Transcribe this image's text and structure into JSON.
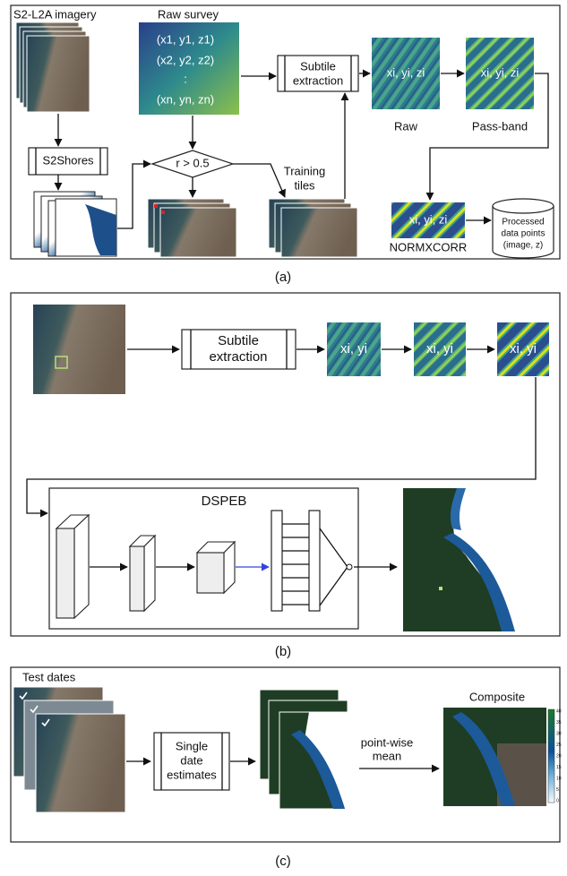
{
  "panel_a": {
    "label": "(a)",
    "imagery_title": "S2-L2A imagery",
    "survey_title": "Raw survey",
    "survey_points": [
      "(x1, y1, z1)",
      "(x2, y2, z2)",
      ":",
      "(xn, yn, zn)"
    ],
    "subtile": [
      "Subtile",
      "extraction"
    ],
    "tiles": [
      {
        "text": "xi, yi, zi",
        "label": "Raw"
      },
      {
        "text": "xi, yi, zi",
        "label": "Pass-band"
      },
      {
        "text": "xi, yi, zi",
        "label": "NORMXCORR"
      }
    ],
    "s2shores": "S2Shores",
    "condition": "r > 0.5",
    "training": [
      "Training",
      "tiles"
    ],
    "processed": [
      "Processed",
      "data points",
      "(image, z)"
    ]
  },
  "panel_b": {
    "label": "(b)",
    "subtile": [
      "Subtile",
      "extraction"
    ],
    "tiles": [
      "xi, yi",
      "xi, yi",
      "xi, yi"
    ],
    "model": "DSPEB"
  },
  "panel_c": {
    "label": "(c)",
    "test_dates": "Test dates",
    "single": [
      "Single",
      "date",
      "estimates"
    ],
    "mean": [
      "point-wise",
      "mean"
    ],
    "composite": "Composite",
    "colorbar_ticks": [
      40,
      35,
      30,
      25,
      20,
      15,
      10,
      5,
      0
    ]
  }
}
